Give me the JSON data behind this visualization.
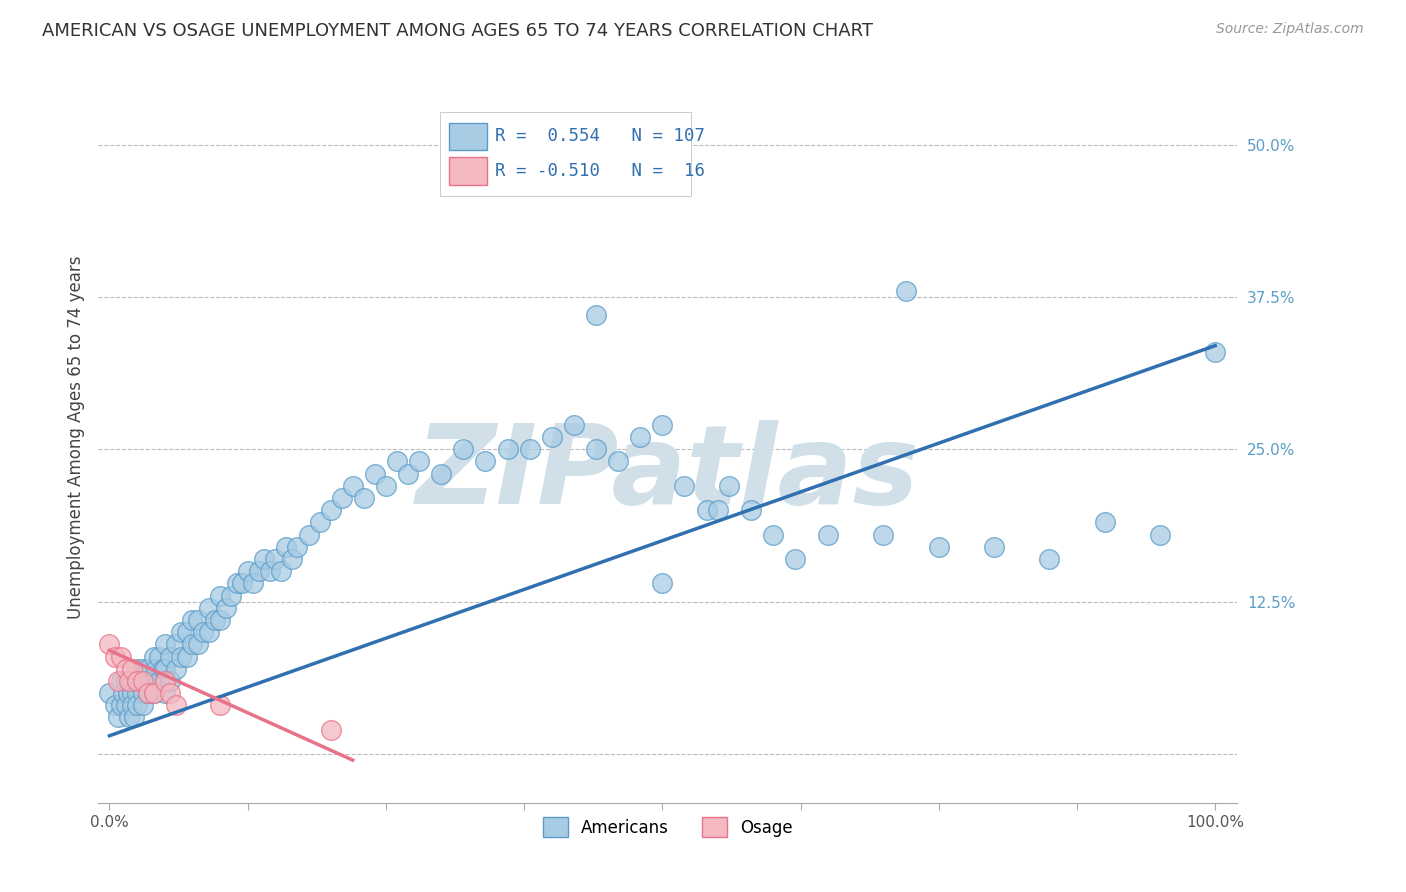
{
  "title": "AMERICAN VS OSAGE UNEMPLOYMENT AMONG AGES 65 TO 74 YEARS CORRELATION CHART",
  "source": "Source: ZipAtlas.com",
  "ylabel": "Unemployment Among Ages 65 to 74 years",
  "xlim": [
    -0.01,
    1.02
  ],
  "ylim": [
    -0.04,
    0.56
  ],
  "xticks": [
    0.0,
    0.125,
    0.25,
    0.375,
    0.5,
    0.625,
    0.75,
    0.875,
    1.0
  ],
  "xtick_labels": [
    "0.0%",
    "",
    "",
    "",
    "",
    "",
    "",
    "",
    "100.0%"
  ],
  "yticks": [
    0.0,
    0.125,
    0.25,
    0.375,
    0.5
  ],
  "ytick_labels": [
    "",
    "12.5%",
    "25.0%",
    "37.5%",
    "50.0%"
  ],
  "legend_r_american": "R =  0.554",
  "legend_n_american": "N = 107",
  "legend_r_osage": "R = -0.510",
  "legend_n_osage": "N =  16",
  "american_color": "#a8cce4",
  "american_edge_color": "#5b9dc9",
  "osage_color": "#f4b8c1",
  "osage_edge_color": "#e8728a",
  "trend_american_color": "#3070b0",
  "trend_osage_color": "#e8728a",
  "background_color": "#ffffff",
  "watermark_text": "ZIPatlas",
  "watermark_color": "#d0dfe8",
  "grid_color": "#bbbbbb",
  "title_color": "#333333",
  "american_x": [
    0.0,
    0.005,
    0.008,
    0.01,
    0.01,
    0.012,
    0.015,
    0.015,
    0.017,
    0.018,
    0.02,
    0.02,
    0.02,
    0.022,
    0.025,
    0.025,
    0.025,
    0.028,
    0.03,
    0.03,
    0.03,
    0.032,
    0.035,
    0.035,
    0.038,
    0.04,
    0.04,
    0.04,
    0.042,
    0.045,
    0.045,
    0.048,
    0.05,
    0.05,
    0.05,
    0.055,
    0.055,
    0.06,
    0.06,
    0.065,
    0.065,
    0.07,
    0.07,
    0.075,
    0.075,
    0.08,
    0.08,
    0.085,
    0.09,
    0.09,
    0.095,
    0.1,
    0.1,
    0.105,
    0.11,
    0.115,
    0.12,
    0.125,
    0.13,
    0.135,
    0.14,
    0.145,
    0.15,
    0.155,
    0.16,
    0.165,
    0.17,
    0.18,
    0.19,
    0.2,
    0.21,
    0.22,
    0.23,
    0.24,
    0.25,
    0.26,
    0.27,
    0.28,
    0.3,
    0.32,
    0.34,
    0.36,
    0.38,
    0.4,
    0.42,
    0.44,
    0.46,
    0.48,
    0.5,
    0.52,
    0.54,
    0.56,
    0.58,
    0.6,
    0.65,
    0.7,
    0.75,
    0.8,
    0.85,
    0.9,
    0.95,
    1.0,
    0.72,
    0.44,
    0.5,
    0.55,
    0.62
  ],
  "american_y": [
    0.05,
    0.04,
    0.03,
    0.06,
    0.04,
    0.05,
    0.06,
    0.04,
    0.05,
    0.03,
    0.06,
    0.05,
    0.04,
    0.03,
    0.07,
    0.05,
    0.04,
    0.06,
    0.07,
    0.05,
    0.04,
    0.06,
    0.07,
    0.05,
    0.06,
    0.08,
    0.06,
    0.05,
    0.07,
    0.08,
    0.06,
    0.07,
    0.09,
    0.07,
    0.05,
    0.08,
    0.06,
    0.09,
    0.07,
    0.1,
    0.08,
    0.1,
    0.08,
    0.11,
    0.09,
    0.11,
    0.09,
    0.1,
    0.12,
    0.1,
    0.11,
    0.13,
    0.11,
    0.12,
    0.13,
    0.14,
    0.14,
    0.15,
    0.14,
    0.15,
    0.16,
    0.15,
    0.16,
    0.15,
    0.17,
    0.16,
    0.17,
    0.18,
    0.19,
    0.2,
    0.21,
    0.22,
    0.21,
    0.23,
    0.22,
    0.24,
    0.23,
    0.24,
    0.23,
    0.25,
    0.24,
    0.25,
    0.25,
    0.26,
    0.27,
    0.25,
    0.24,
    0.26,
    0.27,
    0.22,
    0.2,
    0.22,
    0.2,
    0.18,
    0.18,
    0.18,
    0.17,
    0.17,
    0.16,
    0.19,
    0.18,
    0.33,
    0.38,
    0.36,
    0.14,
    0.2,
    0.16
  ],
  "osage_x": [
    0.0,
    0.005,
    0.008,
    0.01,
    0.015,
    0.018,
    0.02,
    0.025,
    0.03,
    0.035,
    0.04,
    0.05,
    0.055,
    0.06,
    0.1,
    0.2
  ],
  "osage_y": [
    0.09,
    0.08,
    0.06,
    0.08,
    0.07,
    0.06,
    0.07,
    0.06,
    0.06,
    0.05,
    0.05,
    0.06,
    0.05,
    0.04,
    0.04,
    0.02
  ],
  "trend_american_x0": 0.0,
  "trend_american_y0": 0.015,
  "trend_american_x1": 1.0,
  "trend_american_y1": 0.335,
  "trend_osage_x0": 0.0,
  "trend_osage_y0": 0.085,
  "trend_osage_x1": 0.22,
  "trend_osage_y1": -0.005
}
